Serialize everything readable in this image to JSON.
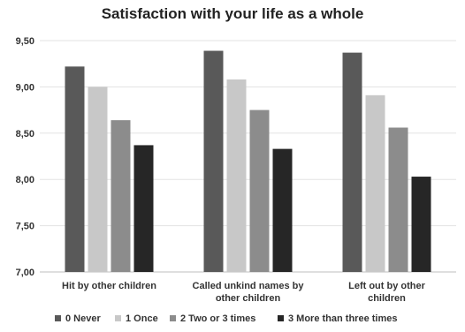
{
  "chart_data": {
    "type": "bar",
    "title": "Satisfaction with your life as a whole",
    "categories": [
      [
        "Hit by other children"
      ],
      [
        "Called unkind names by",
        "other children"
      ],
      [
        "Left out by other",
        "children"
      ]
    ],
    "series": [
      {
        "name": "0 Never",
        "color": "#595959",
        "values": [
          9.22,
          9.39,
          9.37
        ]
      },
      {
        "name": "1 Once",
        "color": "#c8c8c8",
        "values": [
          9.0,
          9.08,
          8.91
        ]
      },
      {
        "name": "2 Two or 3 times",
        "color": "#8c8c8c",
        "values": [
          8.64,
          8.75,
          8.56
        ]
      },
      {
        "name": "3 More than three times",
        "color": "#262626",
        "values": [
          8.37,
          8.33,
          8.03
        ]
      }
    ],
    "y_ticks": [
      "7,00",
      "7,50",
      "8,00",
      "8,50",
      "9,00",
      "9,50"
    ],
    "ylim": [
      7.0,
      9.5
    ],
    "grid": true,
    "legend_position": "bottom"
  }
}
